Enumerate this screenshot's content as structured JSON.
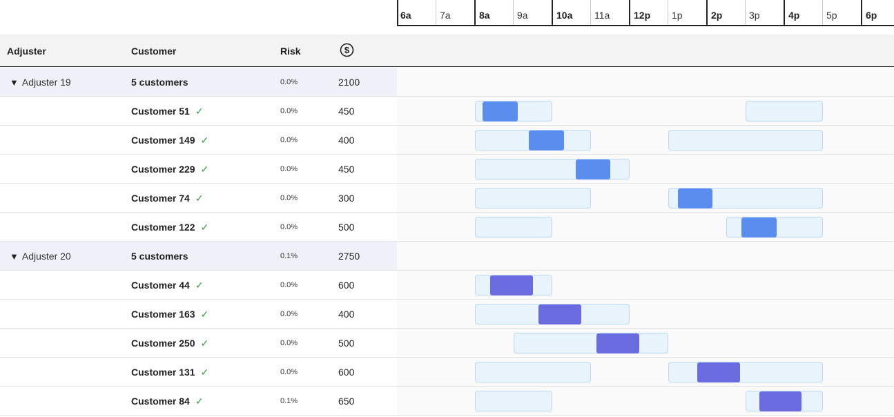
{
  "timeline": {
    "ticks": [
      {
        "label": "6a",
        "kind": "first"
      },
      {
        "label": "7a",
        "kind": "minor"
      },
      {
        "label": "8a",
        "kind": "major"
      },
      {
        "label": "9a",
        "kind": "minor"
      },
      {
        "label": "10a",
        "kind": "major"
      },
      {
        "label": "11a",
        "kind": "minor"
      },
      {
        "label": "12p",
        "kind": "major"
      },
      {
        "label": "1p",
        "kind": "minor"
      },
      {
        "label": "2p",
        "kind": "major"
      },
      {
        "label": "3p",
        "kind": "minor"
      },
      {
        "label": "4p",
        "kind": "major"
      },
      {
        "label": "5p",
        "kind": "minor"
      },
      {
        "label": "6p",
        "kind": "major"
      }
    ]
  },
  "columns": {
    "adjuster": "Adjuster",
    "customer": "Customer",
    "risk": "Risk",
    "amount_icon": "dollar-circle-icon"
  },
  "colors": {
    "window_fill": "#e9f3fc",
    "appointment_adjuster_19": "#5b8def",
    "appointment_adjuster_20": "#6b6be0",
    "check": "#2e9b3e"
  },
  "groups": [
    {
      "adjuster": "Adjuster 19",
      "summary": "5 customers",
      "risk": "0.0%",
      "amount": "2100",
      "color": "blue",
      "customers": [
        {
          "name": "Customer 51",
          "risk": "0.0%",
          "amount": "450",
          "windows": [
            [
              8,
              10
            ],
            [
              15,
              17
            ]
          ],
          "appointment": [
            8.2,
            9.1
          ]
        },
        {
          "name": "Customer 149",
          "risk": "0.0%",
          "amount": "400",
          "windows": [
            [
              8,
              11
            ],
            [
              13,
              17
            ]
          ],
          "appointment": [
            9.4,
            10.3
          ]
        },
        {
          "name": "Customer 229",
          "risk": "0.0%",
          "amount": "450",
          "windows": [
            [
              8,
              12
            ]
          ],
          "appointment": [
            10.6,
            11.5
          ]
        },
        {
          "name": "Customer 74",
          "risk": "0.0%",
          "amount": "300",
          "windows": [
            [
              8,
              11
            ],
            [
              13,
              17
            ]
          ],
          "appointment": [
            13.25,
            14.15
          ]
        },
        {
          "name": "Customer 122",
          "risk": "0.0%",
          "amount": "500",
          "windows": [
            [
              8,
              10
            ],
            [
              14.5,
              17
            ]
          ],
          "appointment": [
            14.9,
            15.8
          ]
        }
      ]
    },
    {
      "adjuster": "Adjuster 20",
      "summary": "5 customers",
      "risk": "0.1%",
      "amount": "2750",
      "color": "indigo",
      "customers": [
        {
          "name": "Customer 44",
          "risk": "0.0%",
          "amount": "600",
          "windows": [
            [
              8,
              10
            ]
          ],
          "appointment": [
            8.4,
            9.5
          ]
        },
        {
          "name": "Customer 163",
          "risk": "0.0%",
          "amount": "400",
          "windows": [
            [
              8,
              12
            ]
          ],
          "appointment": [
            9.65,
            10.75
          ]
        },
        {
          "name": "Customer 250",
          "risk": "0.0%",
          "amount": "500",
          "windows": [
            [
              9,
              13
            ]
          ],
          "appointment": [
            11.15,
            12.25
          ]
        },
        {
          "name": "Customer 131",
          "risk": "0.0%",
          "amount": "600",
          "windows": [
            [
              8,
              11
            ],
            [
              13,
              17
            ]
          ],
          "appointment": [
            13.75,
            14.85
          ]
        },
        {
          "name": "Customer 84",
          "risk": "0.1%",
          "amount": "650",
          "windows": [
            [
              8,
              10
            ],
            [
              15,
              17
            ]
          ],
          "appointment": [
            15.35,
            16.45
          ]
        }
      ]
    }
  ]
}
